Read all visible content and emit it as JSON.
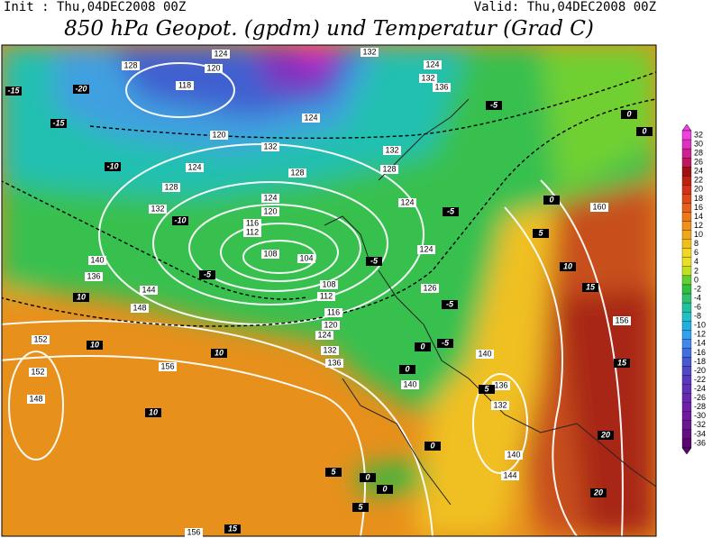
{
  "header": {
    "init": "Init : Thu,04DEC2008 00Z",
    "valid": "Valid: Thu,04DEC2008 00Z",
    "title": "850 hPa Geopot. (gpdm) und Temperatur (Grad C)"
  },
  "color_bar": {
    "labels": [
      32,
      30,
      28,
      26,
      24,
      22,
      20,
      18,
      16,
      14,
      12,
      10,
      8,
      6,
      4,
      2,
      0,
      -2,
      -4,
      -6,
      -8,
      -10,
      -12,
      -14,
      -16,
      -18,
      -20,
      -22,
      -24,
      -26,
      -28,
      -30,
      -32,
      -34,
      -36
    ],
    "colors": [
      "#f040e0",
      "#e030c0",
      "#d02090",
      "#c01860",
      "#a01010",
      "#c02010",
      "#d83018",
      "#e04818",
      "#e86018",
      "#ee7818",
      "#f09018",
      "#f0a818",
      "#f0c018",
      "#f0d820",
      "#e8e020",
      "#c0e020",
      "#60d030",
      "#30c040",
      "#30c070",
      "#20c0a0",
      "#20c0c8",
      "#20b0e0",
      "#30a0f0",
      "#4088f0",
      "#4070e0",
      "#4858d0",
      "#5048c8",
      "#5838c0",
      "#6030b8",
      "#6828b0",
      "#7020a8",
      "#7018a0",
      "#681890",
      "#601080",
      "#580870"
    ]
  },
  "contour_labels": {
    "geopotential": [
      128,
      124,
      120,
      118,
      120,
      124,
      128,
      124,
      120,
      116,
      112,
      108,
      104,
      108,
      112,
      116,
      120,
      124,
      132,
      136,
      140,
      140,
      136,
      132,
      140,
      144,
      148,
      144,
      136,
      140,
      152,
      152,
      148,
      156,
      156,
      132,
      132,
      128,
      132,
      128,
      124,
      124,
      126,
      160,
      156,
      124,
      132,
      136,
      132,
      124
    ],
    "temperature": [
      -15,
      -20,
      -15,
      -10,
      -10,
      -5,
      10,
      10,
      10,
      10,
      5,
      0,
      0,
      5,
      15,
      -5,
      0,
      0,
      0,
      5,
      10,
      15,
      15,
      20,
      20,
      -5,
      -5,
      -5,
      -5,
      0,
      0,
      5,
      0
    ]
  }
}
